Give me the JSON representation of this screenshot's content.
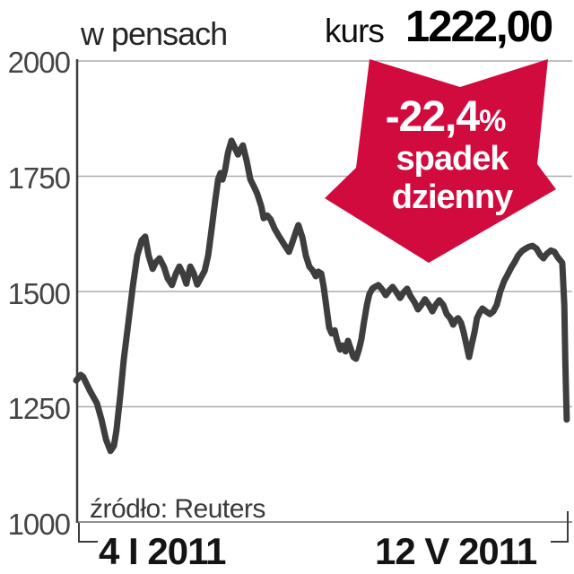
{
  "header": {
    "title": "w pensach",
    "price_label": "kurs",
    "price_value": "1222,00"
  },
  "badge": {
    "change_value": "-22,4",
    "percent_sign": "%",
    "line1": "spadek",
    "line2": "dzienny",
    "color": "#d20b3e"
  },
  "source_note": "źródło: Reuters",
  "chart_data": {
    "type": "line",
    "title": "w pensach",
    "xlabel": "",
    "ylabel": "w pensach",
    "ylim": [
      1000,
      2000
    ],
    "yticks": [
      2000,
      1750,
      1500,
      1250,
      1000
    ],
    "xticks": [
      "4 I 2011",
      "12 V 2011"
    ],
    "grid": true,
    "legend": false,
    "line_color": "#3e3e3e",
    "last_price": 1222.0,
    "daily_change_pct": -22.4,
    "series": [
      {
        "name": "kurs",
        "points": [
          [
            0.0,
            1307
          ],
          [
            0.009,
            1319
          ],
          [
            0.014,
            1315
          ],
          [
            0.027,
            1286
          ],
          [
            0.042,
            1257
          ],
          [
            0.051,
            1222
          ],
          [
            0.06,
            1179
          ],
          [
            0.069,
            1154
          ],
          [
            0.076,
            1165
          ],
          [
            0.081,
            1198
          ],
          [
            0.089,
            1276
          ],
          [
            0.096,
            1354
          ],
          [
            0.105,
            1432
          ],
          [
            0.114,
            1510
          ],
          [
            0.123,
            1578
          ],
          [
            0.132,
            1611
          ],
          [
            0.139,
            1619
          ],
          [
            0.146,
            1578
          ],
          [
            0.154,
            1549
          ],
          [
            0.161,
            1564
          ],
          [
            0.168,
            1572
          ],
          [
            0.177,
            1553
          ],
          [
            0.184,
            1529
          ],
          [
            0.193,
            1514
          ],
          [
            0.201,
            1539
          ],
          [
            0.208,
            1554
          ],
          [
            0.215,
            1539
          ],
          [
            0.222,
            1517
          ],
          [
            0.23,
            1554
          ],
          [
            0.237,
            1539
          ],
          [
            0.244,
            1515
          ],
          [
            0.251,
            1529
          ],
          [
            0.259,
            1545
          ],
          [
            0.266,
            1578
          ],
          [
            0.273,
            1636
          ],
          [
            0.28,
            1695
          ],
          [
            0.286,
            1743
          ],
          [
            0.291,
            1757
          ],
          [
            0.295,
            1743
          ],
          [
            0.3,
            1763
          ],
          [
            0.306,
            1801
          ],
          [
            0.313,
            1827
          ],
          [
            0.32,
            1811
          ],
          [
            0.326,
            1797
          ],
          [
            0.331,
            1807
          ],
          [
            0.336,
            1817
          ],
          [
            0.344,
            1782
          ],
          [
            0.351,
            1743
          ],
          [
            0.358,
            1728
          ],
          [
            0.365,
            1712
          ],
          [
            0.373,
            1685
          ],
          [
            0.378,
            1659
          ],
          [
            0.385,
            1665
          ],
          [
            0.392,
            1656
          ],
          [
            0.4,
            1636
          ],
          [
            0.407,
            1623
          ],
          [
            0.414,
            1611
          ],
          [
            0.421,
            1599
          ],
          [
            0.429,
            1586
          ],
          [
            0.436,
            1607
          ],
          [
            0.443,
            1630
          ],
          [
            0.448,
            1644
          ],
          [
            0.456,
            1617
          ],
          [
            0.463,
            1578
          ],
          [
            0.47,
            1554
          ],
          [
            0.477,
            1545
          ],
          [
            0.483,
            1533
          ],
          [
            0.488,
            1543
          ],
          [
            0.494,
            1539
          ],
          [
            0.499,
            1510
          ],
          [
            0.505,
            1461
          ],
          [
            0.51,
            1422
          ],
          [
            0.515,
            1409
          ],
          [
            0.521,
            1416
          ],
          [
            0.526,
            1393
          ],
          [
            0.532,
            1374
          ],
          [
            0.537,
            1383
          ],
          [
            0.543,
            1370
          ],
          [
            0.548,
            1393
          ],
          [
            0.553,
            1377
          ],
          [
            0.559,
            1358
          ],
          [
            0.564,
            1354
          ],
          [
            0.57,
            1374
          ],
          [
            0.575,
            1397
          ],
          [
            0.58,
            1432
          ],
          [
            0.586,
            1471
          ],
          [
            0.591,
            1494
          ],
          [
            0.597,
            1506
          ],
          [
            0.602,
            1510
          ],
          [
            0.609,
            1514
          ],
          [
            0.617,
            1504
          ],
          [
            0.624,
            1492
          ],
          [
            0.631,
            1502
          ],
          [
            0.638,
            1510
          ],
          [
            0.646,
            1498
          ],
          [
            0.653,
            1486
          ],
          [
            0.66,
            1498
          ],
          [
            0.667,
            1506
          ],
          [
            0.674,
            1490
          ],
          [
            0.682,
            1477
          ],
          [
            0.689,
            1461
          ],
          [
            0.696,
            1471
          ],
          [
            0.703,
            1483
          ],
          [
            0.711,
            1471
          ],
          [
            0.718,
            1457
          ],
          [
            0.725,
            1471
          ],
          [
            0.732,
            1481
          ],
          [
            0.74,
            1471
          ],
          [
            0.747,
            1451
          ],
          [
            0.754,
            1442
          ],
          [
            0.76,
            1428
          ],
          [
            0.765,
            1438
          ],
          [
            0.77,
            1442
          ],
          [
            0.776,
            1432
          ],
          [
            0.781,
            1412
          ],
          [
            0.787,
            1383
          ],
          [
            0.792,
            1358
          ],
          [
            0.797,
            1383
          ],
          [
            0.803,
            1412
          ],
          [
            0.808,
            1442
          ],
          [
            0.814,
            1455
          ],
          [
            0.819,
            1463
          ],
          [
            0.826,
            1457
          ],
          [
            0.834,
            1451
          ],
          [
            0.841,
            1457
          ],
          [
            0.848,
            1471
          ],
          [
            0.855,
            1500
          ],
          [
            0.863,
            1523
          ],
          [
            0.87,
            1537
          ],
          [
            0.877,
            1552
          ],
          [
            0.884,
            1564
          ],
          [
            0.891,
            1578
          ],
          [
            0.899,
            1588
          ],
          [
            0.906,
            1593
          ],
          [
            0.913,
            1597
          ],
          [
            0.92,
            1599
          ],
          [
            0.928,
            1593
          ],
          [
            0.935,
            1580
          ],
          [
            0.942,
            1572
          ],
          [
            0.949,
            1582
          ],
          [
            0.957,
            1589
          ],
          [
            0.964,
            1586
          ],
          [
            0.971,
            1574
          ],
          [
            0.977,
            1566
          ],
          [
            0.98,
            1562
          ],
          [
            0.984,
            1471
          ],
          [
            0.986,
            1350
          ],
          [
            0.988,
            1260
          ],
          [
            0.989,
            1222
          ]
        ]
      }
    ]
  }
}
